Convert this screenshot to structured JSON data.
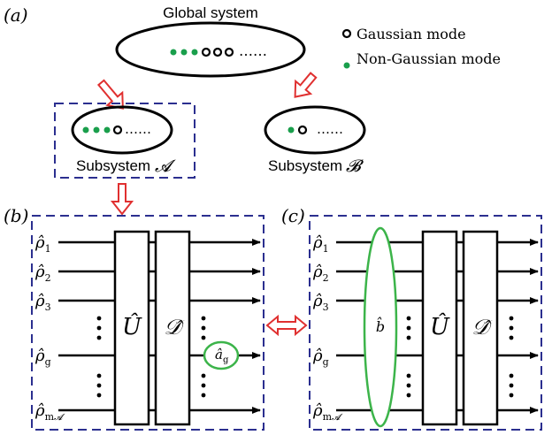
{
  "panel_labels": {
    "a": "(a)",
    "b": "(b)",
    "c": "(c)"
  },
  "global_system": {
    "title": "Global system",
    "ellipsis": "……"
  },
  "legend": {
    "gaussian": "Gaussian mode",
    "non_gaussian": "Non-Gaussian mode"
  },
  "subsystems": {
    "a_label": "Subsystem",
    "a_symbol": "𝓐",
    "b_label": "Subsystem",
    "b_symbol": "𝓑",
    "ellipsis": "……"
  },
  "operators": {
    "U": "Û",
    "D": "𝒟̂",
    "b": "b̂",
    "a_g": "â",
    "a_g_sub": "g"
  },
  "states": {
    "rho": "ρ̂",
    "subs": [
      "1",
      "2",
      "3",
      "g",
      "m"
    ],
    "m_sub_script": "𝓐"
  },
  "colors": {
    "green": "#1a9f4c",
    "dashed_box": "#2b2f8f",
    "red_arrow": "#e03030",
    "ellipse_green": "#3cb44a"
  }
}
